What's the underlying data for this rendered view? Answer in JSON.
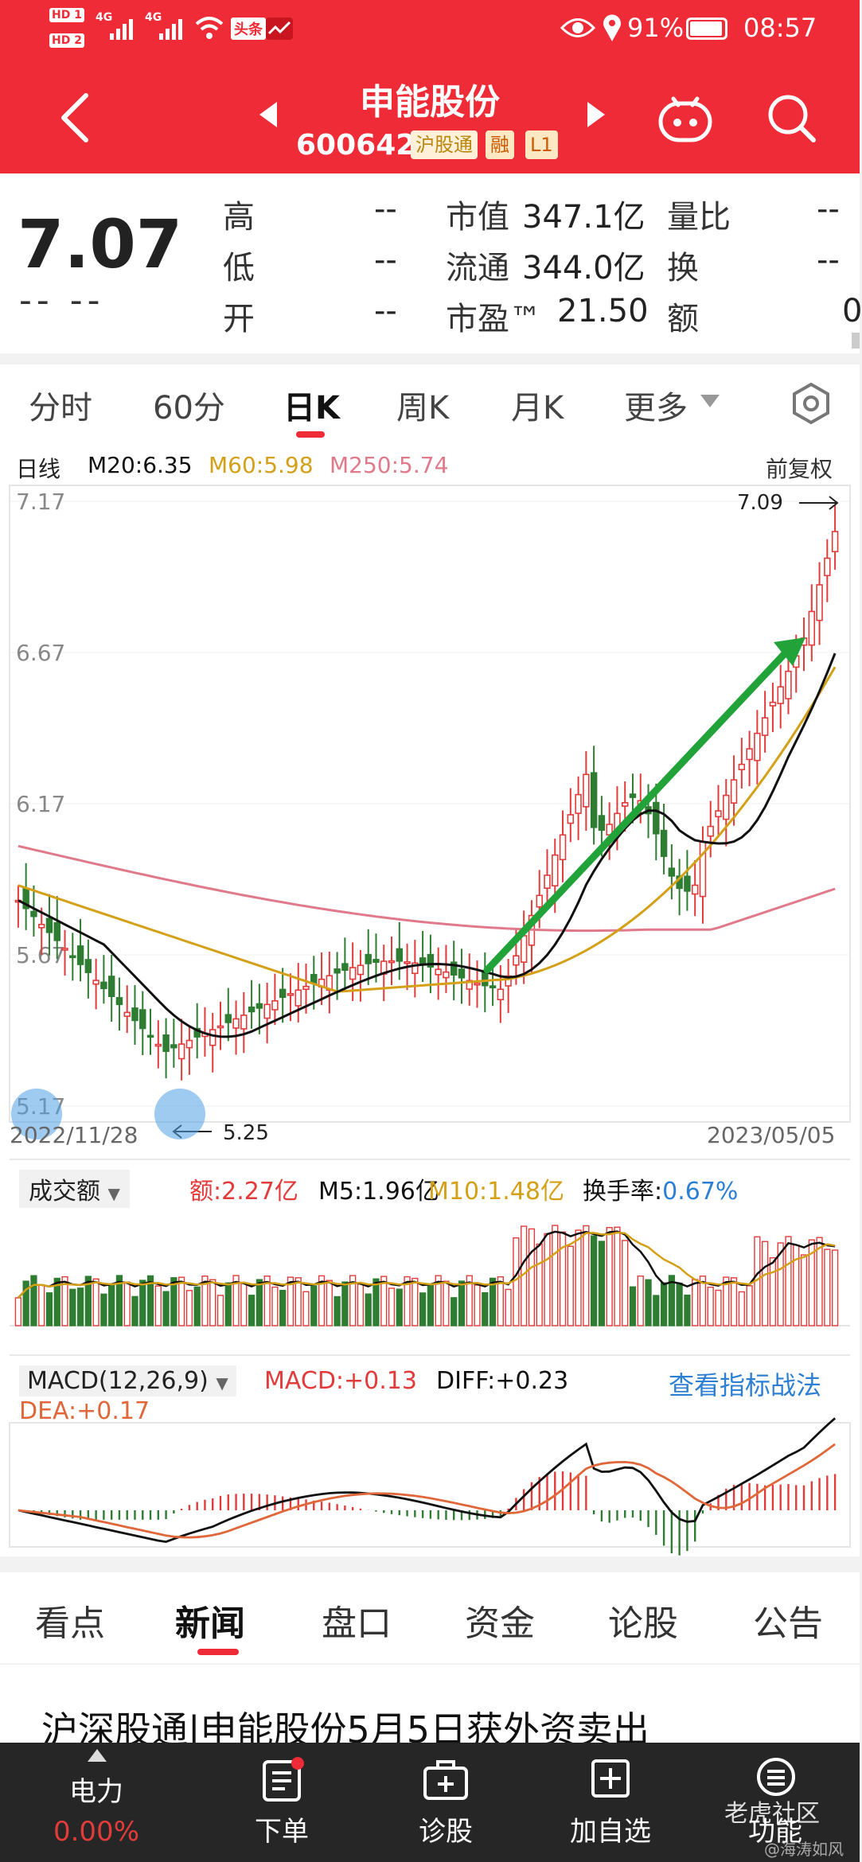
{
  "status_bar": {
    "hd1": "HD 1",
    "hd2": "HD 2",
    "net1": "4G",
    "net2": "4G",
    "toutiao": "头条",
    "battery": "91%",
    "time": "08:57"
  },
  "header": {
    "name": "申能股份",
    "code": "600642",
    "tags": [
      "沪股通",
      "融",
      "L1"
    ]
  },
  "quote": {
    "price": "7.07",
    "change": "-- --",
    "rows": [
      {
        "label": "高",
        "value": "--"
      },
      {
        "label": "低",
        "value": "--"
      },
      {
        "label": "开",
        "value": "--"
      }
    ],
    "mid": [
      {
        "label": "市值",
        "value": "347.1亿"
      },
      {
        "label": "流通",
        "value": "344.0亿"
      },
      {
        "label": "市盈™",
        "value": "21.50"
      }
    ],
    "right": [
      {
        "label": "量比",
        "value": "--"
      },
      {
        "label": "换",
        "value": "--"
      },
      {
        "label": "额",
        "value": "0"
      }
    ]
  },
  "period_tabs": [
    "分时",
    "60分",
    "日K",
    "周K",
    "月K",
    "更多"
  ],
  "active_tab": "日K",
  "kline": {
    "line_label": "日线",
    "ma20": "M20:6.35",
    "ma60": "M60:5.98",
    "ma250": "M250:5.74",
    "adjust": "前复权",
    "y_ticks": [
      "7.17",
      "6.67",
      "6.17",
      "5.67",
      "5.17"
    ],
    "high_mark": "7.09",
    "low_mark": "5.25",
    "date_start": "2022/11/28",
    "date_end": "2023/05/05"
  },
  "volume": {
    "selector": "成交额",
    "amount": "额:2.27亿",
    "m5": "M5:1.96亿",
    "m10": "M10:1.48亿",
    "turnover_label": "换手率:",
    "turnover": "0.67%"
  },
  "macd": {
    "selector": "MACD(12,26,9)",
    "macd": "MACD:+0.13",
    "diff": "DIFF:+0.23",
    "dea": "DEA:+0.17",
    "link": "查看指标战法"
  },
  "news_tabs": [
    "看点",
    "新闻",
    "盘口",
    "资金",
    "论股",
    "公告"
  ],
  "news_active": "新闻",
  "headline": "沪深股通|申能股份5月5日获外资卖出",
  "bottom": {
    "sector": "电力",
    "sector_change": "0.00%",
    "items": [
      "下单",
      "诊股",
      "加自选",
      "功能"
    ]
  },
  "watermark": "老虎社区",
  "watermark2": "@海涛如风",
  "colors": {
    "brand_red": "#ee2b36",
    "up": "#e23b3b",
    "down": "#2e7d32",
    "ma20": "#111111",
    "ma60": "#d4a017",
    "ma250": "#e07a8a",
    "arrow": "#22a33a",
    "link": "#2d7fd3"
  },
  "chart_data": {
    "type": "candlestick",
    "x_range": [
      "2022/11/28",
      "2023/05/05"
    ],
    "ylim": [
      5.17,
      7.17
    ],
    "marked_high": 7.09,
    "marked_low": 5.25,
    "latest_close": 7.07,
    "ma": {
      "M20": 6.35,
      "M60": 5.98,
      "M250": 5.74
    }
  }
}
